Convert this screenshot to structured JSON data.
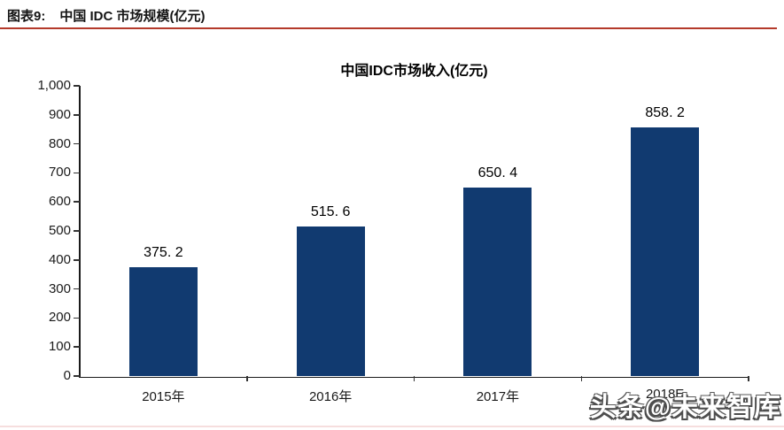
{
  "header": {
    "figure_label": "图表9:",
    "figure_title": "中国 IDC 市场规模(亿元)",
    "divider_color": "#b43a2b"
  },
  "chart_data": {
    "type": "bar",
    "title": "中国IDC市场收入(亿元)",
    "categories": [
      "2015年",
      "2016年",
      "2017年",
      "2018E"
    ],
    "values": [
      375.2,
      515.6,
      650.4,
      858.2
    ],
    "value_labels": [
      "375. 2",
      "515. 6",
      "650. 4",
      "858. 2"
    ],
    "xlabel": "",
    "ylabel": "",
    "ylim": [
      0,
      1000
    ],
    "ytick_step": 100,
    "ytick_labels": [
      "0",
      "100",
      "200",
      "300",
      "400",
      "500",
      "600",
      "700",
      "800",
      "900",
      "1,000"
    ],
    "bar_color": "#113a70",
    "axis_color": "#1a1a1a",
    "grid": false,
    "legend": "none"
  },
  "watermark": {
    "text": "头条@未来智库"
  },
  "footer": {
    "strip_color": "#f6dede"
  }
}
